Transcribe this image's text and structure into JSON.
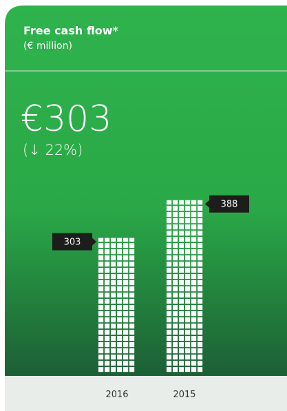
{
  "chart_data": {
    "type": "bar",
    "title": "Free cash flow*",
    "subtitle": "(€ million)",
    "headline": "€303",
    "change": "(↓ 22%)",
    "categories": [
      "2016",
      "2015"
    ],
    "values": [
      303,
      388
    ],
    "color": "#ffffff"
  }
}
